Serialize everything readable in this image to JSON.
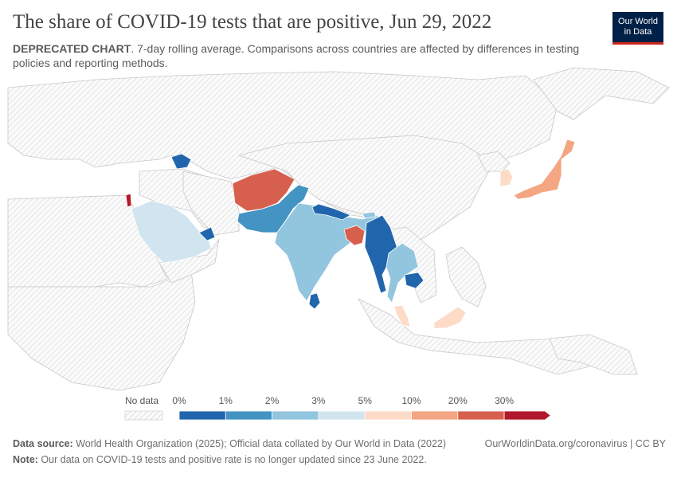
{
  "header": {
    "title": "The share of COVID-19 tests that are positive, Jun 29, 2022",
    "subtitle_bold": "DEPRECATED CHART",
    "subtitle_rest": ". 7-day rolling average. Comparisons across countries are affected by differences in testing policies and reporting methods."
  },
  "logo": {
    "line1": "Our World",
    "line2": "in Data"
  },
  "legend": {
    "no_data_label": "No data",
    "bins": [
      {
        "label": "0%",
        "color": "#2166ac"
      },
      {
        "label": "1%",
        "color": "#4393c3"
      },
      {
        "label": "2%",
        "color": "#92c5de"
      },
      {
        "label": "3%",
        "color": "#d1e5f0"
      },
      {
        "label": "5%",
        "color": "#fddbc7"
      },
      {
        "label": "10%",
        "color": "#f4a582"
      },
      {
        "label": "20%",
        "color": "#d6604d"
      },
      {
        "label": "30%",
        "color": "#b2182b"
      }
    ]
  },
  "map_data": {
    "metric": "Share of COVID-19 tests that are positive (%)",
    "countries": [
      {
        "name": "Afghanistan",
        "bin": "20-30%",
        "color": "#d6604d"
      },
      {
        "name": "Pakistan",
        "bin": "1-2%",
        "color": "#4393c3"
      },
      {
        "name": "India",
        "bin": "2-3%",
        "color": "#92c5de"
      },
      {
        "name": "Nepal",
        "bin": "0-1%",
        "color": "#2166ac"
      },
      {
        "name": "Bhutan",
        "bin": "2-3%",
        "color": "#92c5de"
      },
      {
        "name": "Bangladesh",
        "bin": "20-30%",
        "color": "#d6604d"
      },
      {
        "name": "Myanmar",
        "bin": "0-1%",
        "color": "#2166ac"
      },
      {
        "name": "Sri Lanka",
        "bin": "0-1%",
        "color": "#2166ac"
      },
      {
        "name": "Thailand",
        "bin": "2-3%",
        "color": "#92c5de"
      },
      {
        "name": "Cambodia",
        "bin": "0-1%",
        "color": "#2166ac"
      },
      {
        "name": "Malaysia",
        "bin": "5-10%",
        "color": "#fddbc7"
      },
      {
        "name": "Japan",
        "bin": "10-20%",
        "color": "#f4a582"
      },
      {
        "name": "South Korea",
        "bin": "5-10%",
        "color": "#fddbc7"
      },
      {
        "name": "Saudi Arabia",
        "bin": "3-5%",
        "color": "#d1e5f0"
      },
      {
        "name": "United Arab Emirates",
        "bin": "0-1%",
        "color": "#2166ac"
      },
      {
        "name": "Azerbaijan",
        "bin": "0-1%",
        "color": "#2166ac"
      },
      {
        "name": "Israel",
        "bin": ">30%",
        "color": "#b2182b"
      },
      {
        "name": "Sabah (Malaysia)",
        "bin": "5-10%",
        "color": "#fddbc7"
      }
    ]
  },
  "footer": {
    "source_label": "Data source:",
    "source_text": " World Health Organization (2025); Official data collated by Our World in Data (2022)",
    "right_text": "OurWorldinData.org/coronavirus | CC BY",
    "note_label": "Note:",
    "note_text": " Our data on COVID-19 tests and positive rate is no longer updated since 23 June 2022."
  }
}
